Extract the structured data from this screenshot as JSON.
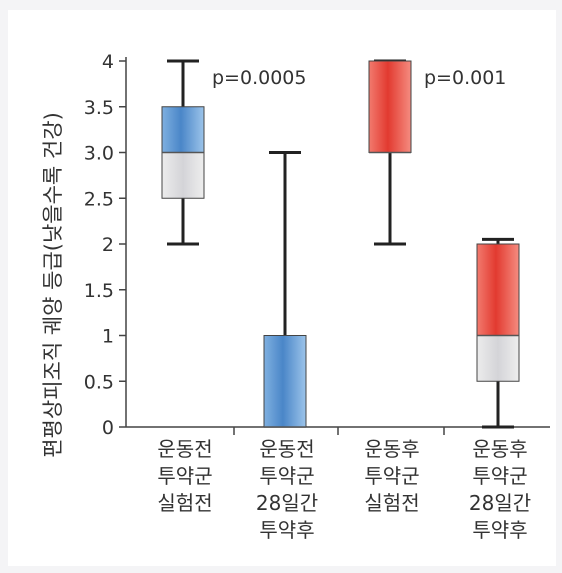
{
  "chart_data": {
    "type": "box",
    "ylabel": "편평상피조직 궤양 등급(낮을수록 건강)",
    "ylim": [
      0,
      4
    ],
    "yticks": [
      "0",
      "0.5",
      "1",
      "1.5",
      "2",
      "2.5",
      "3.0",
      "3.5",
      "4"
    ],
    "ytick_values": [
      0,
      0.5,
      1,
      1.5,
      2,
      2.5,
      3.0,
      3.5,
      4
    ],
    "categories": [
      [
        "운동전",
        "투약군",
        "실험전"
      ],
      [
        "운동전",
        "투약군",
        "28일간",
        "투약후"
      ],
      [
        "운동후",
        "투약군",
        "실험전"
      ],
      [
        "운동후",
        "투약군",
        "28일간",
        "투약후"
      ]
    ],
    "boxes": [
      {
        "min": 2.0,
        "q1": 2.5,
        "median": 3.0,
        "q3": 3.5,
        "max": 4.0,
        "color": "#5b9bd5"
      },
      {
        "min": 0.0,
        "q1": 0.0,
        "median": 0.0,
        "q3": 1.0,
        "max": 3.0,
        "color": "#5b9bd5"
      },
      {
        "min": 2.0,
        "q1": 3.0,
        "median": 3.0,
        "q3": 4.0,
        "max": 4.0,
        "color": "#e8453c"
      },
      {
        "min": 0.0,
        "q1": 0.5,
        "median": 1.0,
        "q3": 2.0,
        "max": 2.05,
        "color": "#e8453c"
      }
    ],
    "annotations": [
      {
        "text": "p=0.0005",
        "between": [
          0,
          1
        ]
      },
      {
        "text": "p=0.001",
        "between": [
          2,
          3
        ]
      }
    ],
    "grid": false
  }
}
